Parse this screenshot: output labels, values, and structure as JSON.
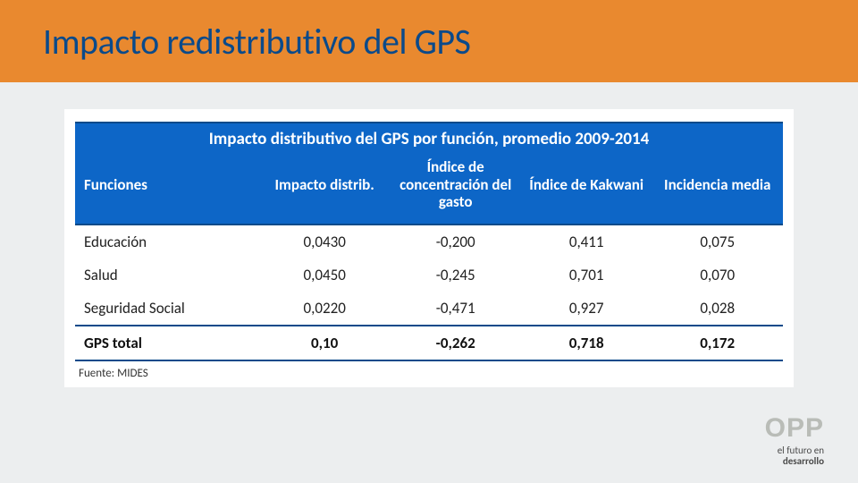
{
  "slide": {
    "title": "Impacto redistributivo del GPS",
    "title_color": "#0b4a8a",
    "band_color": "#e9892f",
    "body_bg": "#eceeef"
  },
  "table": {
    "title": "Impacto distributivo del GPS por función, promedio 2009-2014",
    "header_bg": "#0d66c7",
    "header_text_color": "#ffffff",
    "border_color": "#0b4a8a",
    "columns": [
      {
        "label": "Funciones",
        "align": "left"
      },
      {
        "label": "Impacto distrib.",
        "align": "center"
      },
      {
        "label": "Índice de concentración del gasto",
        "align": "center"
      },
      {
        "label": "Índice de Kakwani",
        "align": "center"
      },
      {
        "label": "Incidencia media",
        "align": "center"
      }
    ],
    "rows": [
      {
        "label": "Educación",
        "impacto": "0,0430",
        "concentracion": "-0,200",
        "kakwani": "0,411",
        "incidencia": "0,075"
      },
      {
        "label": "Salud",
        "impacto": "0,0450",
        "concentracion": "-0,245",
        "kakwani": "0,701",
        "incidencia": "0,070"
      },
      {
        "label": "Seguridad Social",
        "impacto": "0,0220",
        "concentracion": "-0,471",
        "kakwani": "0,927",
        "incidencia": "0,028"
      }
    ],
    "total_row": {
      "label": "GPS total",
      "impacto": "0,10",
      "concentracion": "-0,262",
      "kakwani": "0,718",
      "incidencia": "0,172"
    },
    "source": "Fuente: MIDES",
    "font_size_header": 17,
    "font_size_body": 17
  },
  "logo": {
    "main": "OPP",
    "sub1": "el futuro en",
    "sub2": "desarrollo",
    "main_color": "#b9bcb7"
  }
}
